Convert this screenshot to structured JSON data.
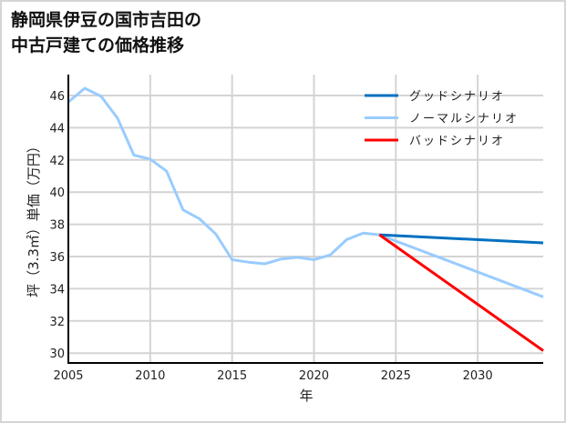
{
  "title_lines": [
    "静岡県伊豆の国市吉田の",
    "中古戸建ての価格推移"
  ],
  "chart_data": {
    "type": "line",
    "title": "静岡県伊豆の国市吉田の中古戸建ての価格推移",
    "xlabel": "年",
    "ylabel": "坪（3.3㎡）単価（万円）",
    "xlim": [
      2005,
      2034
    ],
    "ylim": [
      29.3,
      47.3
    ],
    "xticks": [
      2005,
      2010,
      2015,
      2020,
      2025,
      2030
    ],
    "yticks": [
      30,
      32,
      34,
      36,
      38,
      40,
      42,
      44,
      46
    ],
    "grid": true,
    "legend_position": "upper right",
    "series": [
      {
        "name": "ノーマルシナリオ",
        "color": "#99ccff",
        "x": [
          2005,
          2006,
          2007,
          2008,
          2009,
          2010,
          2011,
          2012,
          2013,
          2014,
          2015,
          2016,
          2017,
          2018,
          2019,
          2020,
          2021,
          2022,
          2023,
          2024,
          2034
        ],
        "y": [
          45.6,
          46.45,
          45.95,
          44.6,
          42.3,
          42.05,
          41.3,
          38.9,
          38.35,
          37.4,
          35.8,
          35.65,
          35.55,
          35.85,
          35.95,
          35.8,
          36.1,
          37.05,
          37.45,
          37.35,
          33.5
        ]
      },
      {
        "name": "グッドシナリオ",
        "color": "#0070c0",
        "x": [
          2024,
          2034
        ],
        "y": [
          37.35,
          36.85
        ]
      },
      {
        "name": "バッドシナリオ",
        "color": "#ff0000",
        "x": [
          2024,
          2034
        ],
        "y": [
          37.35,
          30.15
        ]
      }
    ],
    "legend": [
      "グッドシナリオ",
      "ノーマルシナリオ",
      "バッドシナリオ"
    ]
  }
}
